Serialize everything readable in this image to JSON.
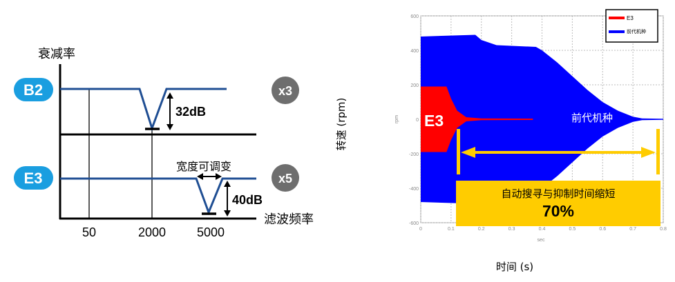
{
  "left_diagram": {
    "y_axis_label": "衰减率",
    "x_axis_label": "滤波频率",
    "x_ticks": [
      "50",
      "2000",
      "5000"
    ],
    "rows": [
      {
        "badge": "B2",
        "multiplier": "x3",
        "depth_label": "32dB",
        "notch_freq": "2000"
      },
      {
        "badge": "E3",
        "multiplier": "x5",
        "depth_label": "40dB",
        "notch_freq": "5000",
        "width_label": "宽度可调变"
      }
    ],
    "colors": {
      "badge": "#1a9ee0",
      "multiplier": "#6e6e6e",
      "curve": "#1f4e93"
    }
  },
  "chart_data": {
    "type": "area",
    "ylabel_outer": "转速 (rpm)",
    "xlabel_outer": "时间 (s)",
    "ylabel": "rpm",
    "xlabel": "sec",
    "xlim": [
      0,
      0.8
    ],
    "ylim": [
      -600,
      600
    ],
    "x_ticks": [
      "0",
      "0.1",
      "0.2",
      "0.3",
      "0.4",
      "0.5",
      "0.6",
      "0.7",
      "0.8"
    ],
    "y_ticks": [
      "600",
      "400",
      "200",
      "0",
      "-200",
      "-400",
      "-600"
    ],
    "grid": true,
    "legend_placement": "top-right",
    "series": [
      {
        "name": "E3",
        "color": "#ff0000",
        "envelope": [
          [
            0,
            190
          ],
          [
            0.085,
            190
          ],
          [
            0.1,
            120
          ],
          [
            0.12,
            50
          ],
          [
            0.15,
            12
          ],
          [
            0.2,
            5
          ],
          [
            0.37,
            4
          ]
        ]
      },
      {
        "name": "前代机种",
        "color": "#0000ff",
        "envelope": [
          [
            0,
            480
          ],
          [
            0.18,
            490
          ],
          [
            0.2,
            460
          ],
          [
            0.25,
            430
          ],
          [
            0.38,
            420
          ],
          [
            0.4,
            400
          ],
          [
            0.45,
            330
          ],
          [
            0.5,
            250
          ],
          [
            0.55,
            170
          ],
          [
            0.6,
            100
          ],
          [
            0.65,
            50
          ],
          [
            0.7,
            15
          ],
          [
            0.73,
            5
          ],
          [
            0.8,
            3
          ]
        ]
      }
    ],
    "annotations": {
      "e3_label": "E3",
      "prev_label": "前代机种",
      "box_text": "自动搜寻与抑制时间缩短",
      "box_value": "70%",
      "arrow_range": [
        0.12,
        0.8
      ]
    },
    "colors": {
      "highlight": "#ffcc00"
    }
  }
}
